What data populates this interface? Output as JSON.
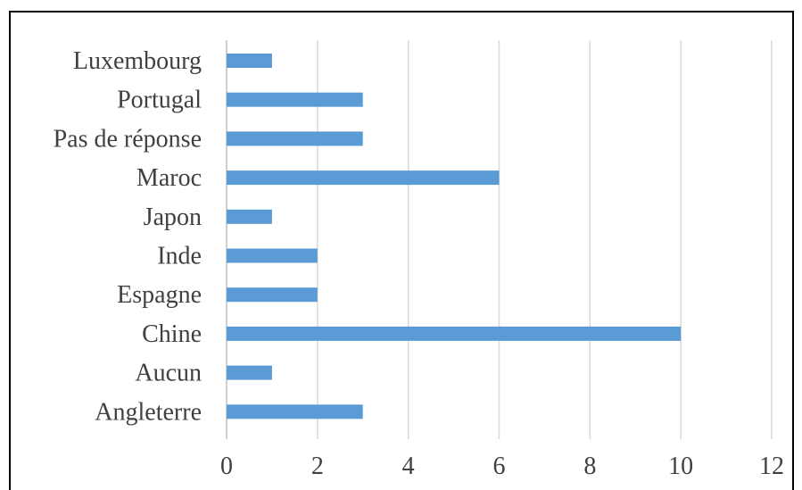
{
  "chart_data": {
    "type": "bar",
    "orientation": "horizontal",
    "categories": [
      "Luxembourg",
      "Portugal",
      "Pas de réponse",
      "Maroc",
      "Japon",
      "Inde",
      "Espagne",
      "Chine",
      "Aucun",
      "Angleterre"
    ],
    "values": [
      1,
      3,
      3,
      6,
      1,
      2,
      2,
      10,
      1,
      3
    ],
    "xlim": [
      0,
      12
    ],
    "xticks": [
      "0",
      "2",
      "4",
      "6",
      "8",
      "10",
      "12"
    ],
    "grid": "vertical",
    "legend": "none",
    "bar_color": "#5b9bd5"
  }
}
